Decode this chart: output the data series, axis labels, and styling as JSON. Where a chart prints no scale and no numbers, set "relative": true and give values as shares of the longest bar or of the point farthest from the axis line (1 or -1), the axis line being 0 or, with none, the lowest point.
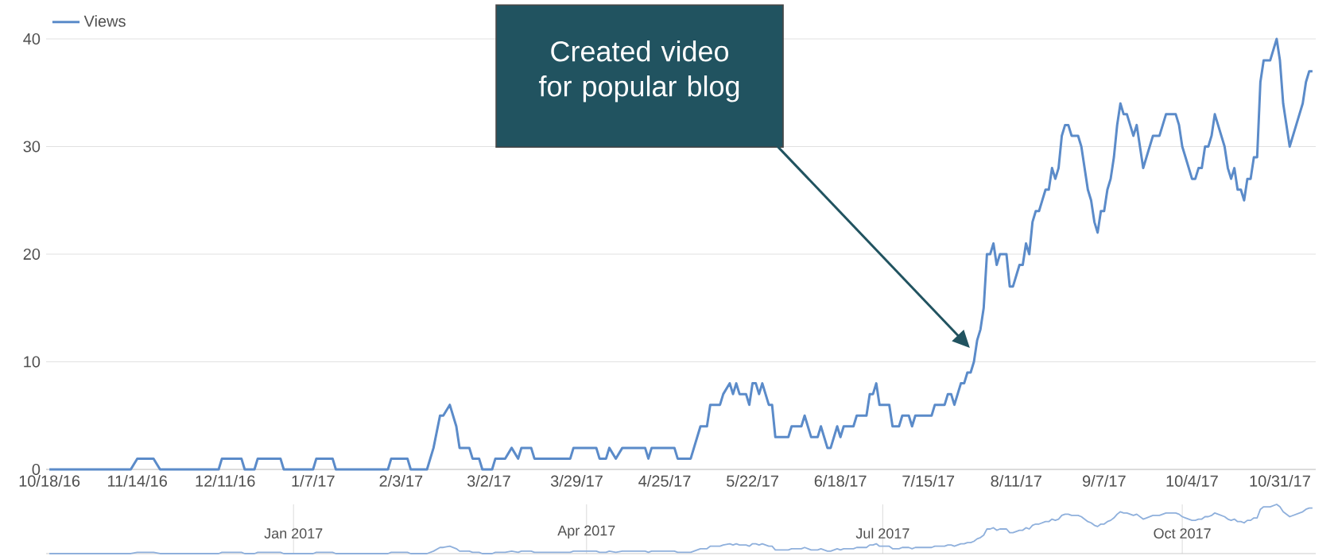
{
  "chart_data": [
    {
      "type": "line",
      "x": [
        "2016-10-18",
        "2016-11-12",
        "2016-11-14",
        "2016-11-19",
        "2016-11-21",
        "2016-12-09",
        "2016-12-10",
        "2016-12-16",
        "2016-12-17",
        "2016-12-20",
        "2016-12-21",
        "2016-12-28",
        "2016-12-29",
        "2017-01-07",
        "2017-01-08",
        "2017-01-13",
        "2017-01-14",
        "2017-01-30",
        "2017-01-31",
        "2017-02-05",
        "2017-02-06",
        "2017-02-11",
        "2017-02-13",
        "2017-02-15",
        "2017-02-16",
        "2017-02-18",
        "2017-02-20",
        "2017-02-21",
        "2017-02-24",
        "2017-02-25",
        "2017-02-27",
        "2017-02-28",
        "2017-03-03",
        "2017-03-04",
        "2017-03-07",
        "2017-03-09",
        "2017-03-11",
        "2017-03-12",
        "2017-03-15",
        "2017-03-16",
        "2017-03-27",
        "2017-03-28",
        "2017-04-04",
        "2017-04-05",
        "2017-04-07",
        "2017-04-08",
        "2017-04-10",
        "2017-04-12",
        "2017-04-19",
        "2017-04-20",
        "2017-04-21",
        "2017-04-28",
        "2017-04-29",
        "2017-05-03",
        "2017-05-06",
        "2017-05-08",
        "2017-05-09",
        "2017-05-12",
        "2017-05-13",
        "2017-05-15",
        "2017-05-16",
        "2017-05-17",
        "2017-05-18",
        "2017-05-20",
        "2017-05-21",
        "2017-05-22",
        "2017-05-23",
        "2017-05-24",
        "2017-05-25",
        "2017-05-27",
        "2017-05-28",
        "2017-05-29",
        "2017-06-02",
        "2017-06-03",
        "2017-06-06",
        "2017-06-07",
        "2017-06-09",
        "2017-06-11",
        "2017-06-12",
        "2017-06-14",
        "2017-06-15",
        "2017-06-17",
        "2017-06-18",
        "2017-06-19",
        "2017-06-22",
        "2017-06-23",
        "2017-06-26",
        "2017-06-27",
        "2017-06-28",
        "2017-06-29",
        "2017-06-30",
        "2017-07-03",
        "2017-07-04",
        "2017-07-06",
        "2017-07-07",
        "2017-07-09",
        "2017-07-10",
        "2017-07-11",
        "2017-07-16",
        "2017-07-17",
        "2017-07-20",
        "2017-07-21",
        "2017-07-22",
        "2017-07-23",
        "2017-07-25",
        "2017-07-26",
        "2017-07-27",
        "2017-07-28",
        "2017-07-29",
        "2017-07-30",
        "2017-07-31",
        "2017-08-01",
        "2017-08-02",
        "2017-08-03",
        "2017-08-04",
        "2017-08-05",
        "2017-08-06",
        "2017-08-08",
        "2017-08-09",
        "2017-08-10",
        "2017-08-12",
        "2017-08-13",
        "2017-08-14",
        "2017-08-15",
        "2017-08-16",
        "2017-08-17",
        "2017-08-18",
        "2017-08-20",
        "2017-08-21",
        "2017-08-22",
        "2017-08-23",
        "2017-08-24",
        "2017-08-25",
        "2017-08-26",
        "2017-08-27",
        "2017-08-28",
        "2017-08-30",
        "2017-08-31",
        "2017-09-02",
        "2017-09-03",
        "2017-09-04",
        "2017-09-05",
        "2017-09-06",
        "2017-09-07",
        "2017-09-08",
        "2017-09-09",
        "2017-09-10",
        "2017-09-11",
        "2017-09-12",
        "2017-09-13",
        "2017-09-14",
        "2017-09-15",
        "2017-09-16",
        "2017-09-17",
        "2017-09-19",
        "2017-09-20",
        "2017-09-22",
        "2017-09-24",
        "2017-09-25",
        "2017-09-26",
        "2017-09-29",
        "2017-09-30",
        "2017-10-01",
        "2017-10-02",
        "2017-10-04",
        "2017-10-05",
        "2017-10-06",
        "2017-10-07",
        "2017-10-08",
        "2017-10-09",
        "2017-10-10",
        "2017-10-11",
        "2017-10-12",
        "2017-10-14",
        "2017-10-15",
        "2017-10-16",
        "2017-10-17",
        "2017-10-18",
        "2017-10-19",
        "2017-10-20",
        "2017-10-21",
        "2017-10-22",
        "2017-10-23",
        "2017-10-24",
        "2017-10-25",
        "2017-10-26",
        "2017-10-28",
        "2017-10-30",
        "2017-10-31",
        "2017-11-01",
        "2017-11-03",
        "2017-11-05",
        "2017-11-07",
        "2017-11-08",
        "2017-11-09",
        "2017-11-10"
      ],
      "series": [
        {
          "name": "Views",
          "color": "#5b8bc9",
          "values": [
            0,
            0,
            1,
            1,
            0,
            0,
            1,
            1,
            0,
            0,
            1,
            1,
            0,
            0,
            1,
            1,
            0,
            0,
            1,
            1,
            0,
            0,
            2,
            5,
            5,
            6,
            4,
            2,
            2,
            1,
            1,
            0,
            0,
            1,
            1,
            2,
            1,
            2,
            2,
            1,
            1,
            2,
            2,
            1,
            1,
            2,
            1,
            2,
            2,
            1,
            2,
            2,
            1,
            1,
            4,
            4,
            6,
            6,
            7,
            8,
            7,
            8,
            7,
            7,
            6,
            8,
            8,
            7,
            8,
            6,
            6,
            3,
            3,
            4,
            4,
            5,
            3,
            3,
            4,
            2,
            2,
            4,
            3,
            4,
            4,
            5,
            5,
            7,
            7,
            8,
            6,
            6,
            4,
            4,
            5,
            5,
            4,
            5,
            5,
            6,
            6,
            7,
            7,
            6,
            8,
            8,
            9,
            9,
            10,
            12,
            13,
            15,
            20,
            20,
            21,
            19,
            20,
            20,
            17,
            17,
            19,
            19,
            21,
            20,
            23,
            24,
            24,
            26,
            26,
            28,
            27,
            28,
            31,
            32,
            32,
            31,
            31,
            30,
            26,
            25,
            23,
            22,
            24,
            24,
            26,
            27,
            29,
            32,
            34,
            33,
            33,
            32,
            31,
            32,
            28,
            29,
            31,
            31,
            32,
            33,
            33,
            32,
            30,
            29,
            27,
            27,
            28,
            28,
            30,
            30,
            31,
            33,
            32,
            30,
            28,
            27,
            28,
            26,
            26,
            25,
            27,
            27,
            29,
            29,
            36,
            38,
            38,
            40,
            38,
            34,
            30,
            32,
            34,
            36,
            37,
            37
          ]
        }
      ],
      "xlim": [
        "2016-10-17",
        "2017-11-11"
      ],
      "ylim": [
        0,
        40
      ],
      "xticks": [
        {
          "value": "2016-10-18",
          "label": "10/18/16"
        },
        {
          "value": "2016-11-14",
          "label": "11/14/16"
        },
        {
          "value": "2016-12-11",
          "label": "12/11/16"
        },
        {
          "value": "2017-01-07",
          "label": "1/7/17"
        },
        {
          "value": "2017-02-03",
          "label": "2/3/17"
        },
        {
          "value": "2017-03-02",
          "label": "3/2/17"
        },
        {
          "value": "2017-03-29",
          "label": "3/29/17"
        },
        {
          "value": "2017-04-25",
          "label": "4/25/17"
        },
        {
          "value": "2017-05-22",
          "label": "5/22/17"
        },
        {
          "value": "2017-06-18",
          "label": "6/18/17"
        },
        {
          "value": "2017-07-15",
          "label": "7/15/17"
        },
        {
          "value": "2017-08-11",
          "label": "8/11/17"
        },
        {
          "value": "2017-09-07",
          "label": "9/7/17"
        },
        {
          "value": "2017-10-04",
          "label": "10/4/17"
        },
        {
          "value": "2017-10-31",
          "label": "10/31/17"
        }
      ],
      "yticks": [
        0,
        10,
        20,
        30,
        40
      ],
      "grid": "y",
      "legend": "top left",
      "annotations": [
        "Created video for popular blog"
      ]
    },
    {
      "type": "line",
      "x": [
        "2016-10-18",
        "2016-11-12",
        "2016-11-14",
        "2016-11-19",
        "2016-11-21",
        "2016-12-09",
        "2016-12-10",
        "2016-12-16",
        "2016-12-17",
        "2016-12-20",
        "2016-12-21",
        "2016-12-28",
        "2016-12-29",
        "2017-01-07",
        "2017-01-08",
        "2017-01-13",
        "2017-01-14",
        "2017-01-30",
        "2017-01-31",
        "2017-02-05",
        "2017-02-06",
        "2017-02-11",
        "2017-02-13",
        "2017-02-15",
        "2017-02-16",
        "2017-02-18",
        "2017-02-20",
        "2017-02-21",
        "2017-02-24",
        "2017-02-25",
        "2017-02-27",
        "2017-02-28",
        "2017-03-03",
        "2017-03-04",
        "2017-03-07",
        "2017-03-09",
        "2017-03-11",
        "2017-03-12",
        "2017-03-15",
        "2017-03-16",
        "2017-03-27",
        "2017-03-28",
        "2017-04-04",
        "2017-04-05",
        "2017-04-07",
        "2017-04-08",
        "2017-04-10",
        "2017-04-12",
        "2017-04-19",
        "2017-04-20",
        "2017-04-21",
        "2017-04-28",
        "2017-04-29",
        "2017-05-03",
        "2017-05-06",
        "2017-05-08",
        "2017-05-09",
        "2017-05-12",
        "2017-05-13",
        "2017-05-15",
        "2017-05-16",
        "2017-05-17",
        "2017-05-18",
        "2017-05-20",
        "2017-05-21",
        "2017-05-22",
        "2017-05-23",
        "2017-05-24",
        "2017-05-25",
        "2017-05-27",
        "2017-05-28",
        "2017-05-29",
        "2017-06-02",
        "2017-06-03",
        "2017-06-06",
        "2017-06-07",
        "2017-06-09",
        "2017-06-11",
        "2017-06-12",
        "2017-06-14",
        "2017-06-15",
        "2017-06-17",
        "2017-06-18",
        "2017-06-19",
        "2017-06-22",
        "2017-06-23",
        "2017-06-26",
        "2017-06-27",
        "2017-06-28",
        "2017-06-29",
        "2017-06-30",
        "2017-07-03",
        "2017-07-04",
        "2017-07-06",
        "2017-07-07",
        "2017-07-09",
        "2017-07-10",
        "2017-07-11",
        "2017-07-16",
        "2017-07-17",
        "2017-07-20",
        "2017-07-21",
        "2017-07-22",
        "2017-07-23",
        "2017-07-25",
        "2017-07-26",
        "2017-07-27",
        "2017-07-28",
        "2017-07-29",
        "2017-07-30",
        "2017-07-31",
        "2017-08-01",
        "2017-08-02",
        "2017-08-03",
        "2017-08-04",
        "2017-08-05",
        "2017-08-06",
        "2017-08-08",
        "2017-08-09",
        "2017-08-10",
        "2017-08-12",
        "2017-08-13",
        "2017-08-14",
        "2017-08-15",
        "2017-08-16",
        "2017-08-17",
        "2017-08-18",
        "2017-08-20",
        "2017-08-21",
        "2017-08-22",
        "2017-08-23",
        "2017-08-24",
        "2017-08-25",
        "2017-08-26",
        "2017-08-27",
        "2017-08-28",
        "2017-08-30",
        "2017-08-31",
        "2017-09-02",
        "2017-09-03",
        "2017-09-04",
        "2017-09-05",
        "2017-09-06",
        "2017-09-07",
        "2017-09-08",
        "2017-09-09",
        "2017-09-10",
        "2017-09-11",
        "2017-09-12",
        "2017-09-13",
        "2017-09-14",
        "2017-09-15",
        "2017-09-16",
        "2017-09-17",
        "2017-09-19",
        "2017-09-20",
        "2017-09-22",
        "2017-09-24",
        "2017-09-25",
        "2017-09-26",
        "2017-09-29",
        "2017-09-30",
        "2017-10-01",
        "2017-10-02",
        "2017-10-04",
        "2017-10-05",
        "2017-10-06",
        "2017-10-07",
        "2017-10-08",
        "2017-10-09",
        "2017-10-10",
        "2017-10-11",
        "2017-10-12",
        "2017-10-14",
        "2017-10-15",
        "2017-10-16",
        "2017-10-17",
        "2017-10-18",
        "2017-10-19",
        "2017-10-20",
        "2017-10-21",
        "2017-10-22",
        "2017-10-23",
        "2017-10-24",
        "2017-10-25",
        "2017-10-26",
        "2017-10-28",
        "2017-10-30",
        "2017-10-31",
        "2017-11-01",
        "2017-11-03",
        "2017-11-05",
        "2017-11-07",
        "2017-11-08",
        "2017-11-09",
        "2017-11-10"
      ],
      "series": [
        {
          "color": "#8fb0dc",
          "values": [
            0,
            0,
            0.025,
            0.025,
            0,
            0,
            0.025,
            0.025,
            0,
            0,
            0.025,
            0.025,
            0,
            0,
            0.025,
            0.025,
            0,
            0,
            0.025,
            0.025,
            0,
            0,
            0.05,
            0.125,
            0.125,
            0.15,
            0.1,
            0.05,
            0.05,
            0.025,
            0.025,
            0,
            0,
            0.025,
            0.025,
            0.05,
            0.025,
            0.05,
            0.05,
            0.025,
            0.025,
            0.05,
            0.05,
            0.025,
            0.025,
            0.05,
            0.025,
            0.05,
            0.05,
            0.025,
            0.05,
            0.05,
            0.025,
            0.025,
            0.1,
            0.1,
            0.15,
            0.15,
            0.175,
            0.2,
            0.175,
            0.2,
            0.175,
            0.175,
            0.15,
            0.2,
            0.2,
            0.175,
            0.2,
            0.15,
            0.15,
            0.075,
            0.075,
            0.1,
            0.1,
            0.125,
            0.075,
            0.075,
            0.1,
            0.05,
            0.05,
            0.1,
            0.075,
            0.1,
            0.1,
            0.125,
            0.125,
            0.175,
            0.175,
            0.2,
            0.15,
            0.15,
            0.1,
            0.1,
            0.125,
            0.125,
            0.1,
            0.125,
            0.125,
            0.15,
            0.15,
            0.175,
            0.175,
            0.15,
            0.2,
            0.2,
            0.225,
            0.225,
            0.25,
            0.3,
            0.325,
            0.375,
            0.5,
            0.5,
            0.525,
            0.475,
            0.5,
            0.5,
            0.425,
            0.425,
            0.475,
            0.475,
            0.525,
            0.5,
            0.575,
            0.6,
            0.6,
            0.65,
            0.65,
            0.7,
            0.675,
            0.7,
            0.775,
            0.8,
            0.8,
            0.775,
            0.775,
            0.75,
            0.65,
            0.625,
            0.575,
            0.55,
            0.6,
            0.6,
            0.65,
            0.675,
            0.725,
            0.8,
            0.85,
            0.825,
            0.825,
            0.8,
            0.775,
            0.8,
            0.7,
            0.725,
            0.775,
            0.775,
            0.8,
            0.825,
            0.825,
            0.8,
            0.75,
            0.725,
            0.675,
            0.675,
            0.7,
            0.7,
            0.75,
            0.75,
            0.775,
            0.825,
            0.8,
            0.75,
            0.7,
            0.675,
            0.7,
            0.65,
            0.65,
            0.625,
            0.675,
            0.675,
            0.725,
            0.725,
            0.9,
            0.95,
            0.95,
            1,
            0.95,
            0.85,
            0.75,
            0.8,
            0.85,
            0.9,
            0.925,
            0.925
          ]
        }
      ],
      "xlim": [
        "2016-10-17",
        "2017-11-11"
      ],
      "relative": true,
      "xticks": [
        {
          "value": "2017-01-01",
          "label": "Jan 2017"
        },
        {
          "value": "2017-04-01",
          "label": "Apr 2017"
        },
        {
          "value": "2017-07-01",
          "label": "Jul 2017"
        },
        {
          "value": "2017-10-01",
          "label": "Oct 2017"
        }
      ],
      "grid": "x",
      "tick_labels": "x"
    }
  ]
}
